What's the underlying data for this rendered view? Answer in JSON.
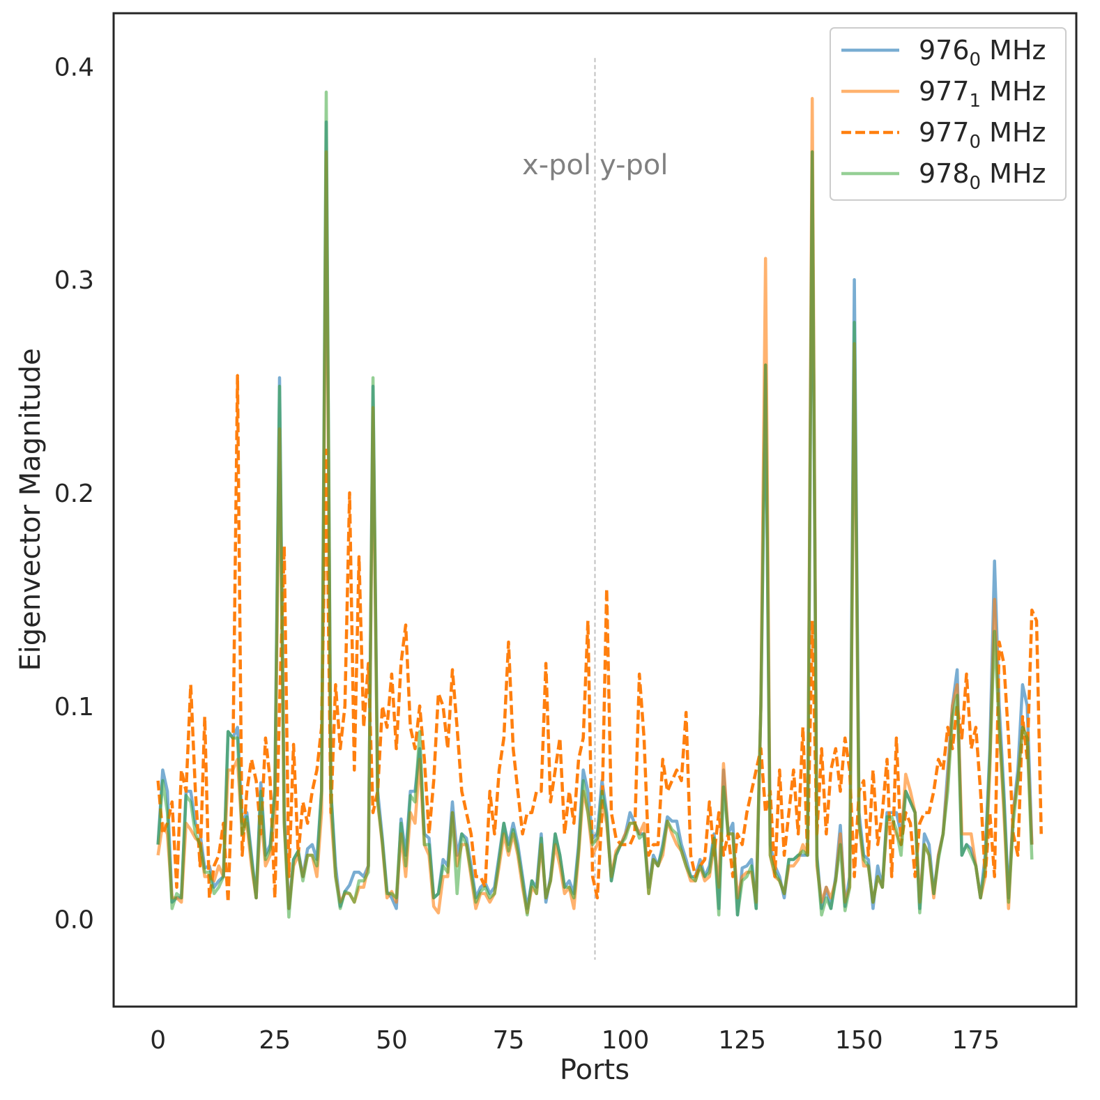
{
  "chart_data": {
    "type": "line",
    "xlabel": "Ports",
    "ylabel": "Eigenvector Magnitude",
    "xlim": [
      -9.5,
      196.5
    ],
    "ylim": [
      -0.041,
      0.425
    ],
    "xticks": [
      0,
      25,
      50,
      75,
      100,
      125,
      150,
      175
    ],
    "yticks": [
      0.0,
      0.1,
      0.2,
      0.3,
      0.4
    ],
    "grid": false,
    "legend_position": "top-right",
    "annotations": [
      {
        "text": "x-pol",
        "x": 93,
        "y": 0.354,
        "align": "right"
      },
      {
        "text": "y-pol",
        "x": 93,
        "y": 0.354,
        "align": "left"
      }
    ],
    "vline": {
      "x": 93.5,
      "y_range": [
        -0.019,
        0.404
      ],
      "style": "dashed",
      "color": "#c0c0c0"
    },
    "series": [
      {
        "name_main": "976",
        "name_sub": "0",
        "name_unit": " MHz",
        "color": "#1f77b4",
        "opacity": 0.6,
        "dash": "solid",
        "values": [
          0.035,
          0.07,
          0.06,
          0.008,
          0.01,
          0.01,
          0.06,
          0.06,
          0.045,
          0.04,
          0.024,
          0.025,
          0.015,
          0.018,
          0.02,
          0.088,
          0.085,
          0.09,
          0.045,
          0.05,
          0.03,
          0.01,
          0.064,
          0.03,
          0.035,
          0.06,
          0.254,
          0.05,
          0.005,
          0.028,
          0.032,
          0.02,
          0.033,
          0.035,
          0.028,
          0.06,
          0.374,
          0.06,
          0.025,
          0.006,
          0.013,
          0.016,
          0.022,
          0.022,
          0.02,
          0.025,
          0.25,
          0.06,
          0.038,
          0.013,
          0.01,
          0.005,
          0.047,
          0.03,
          0.06,
          0.06,
          0.08,
          0.04,
          0.038,
          0.01,
          0.012,
          0.028,
          0.025,
          0.055,
          0.03,
          0.04,
          0.038,
          0.025,
          0.01,
          0.015,
          0.017,
          0.012,
          0.015,
          0.03,
          0.045,
          0.035,
          0.045,
          0.035,
          0.02,
          0.005,
          0.018,
          0.015,
          0.04,
          0.008,
          0.02,
          0.04,
          0.03,
          0.015,
          0.018,
          0.012,
          0.035,
          0.07,
          0.06,
          0.038,
          0.04,
          0.065,
          0.05,
          0.018,
          0.03,
          0.035,
          0.04,
          0.05,
          0.045,
          0.04,
          0.04,
          0.015,
          0.03,
          0.025,
          0.035,
          0.048,
          0.046,
          0.046,
          0.035,
          0.028,
          0.02,
          0.02,
          0.028,
          0.02,
          0.025,
          0.04,
          0.005,
          0.07,
          0.04,
          0.045,
          0.002,
          0.024,
          0.025,
          0.028,
          0.005,
          0.1,
          0.26,
          0.035,
          0.025,
          0.02,
          0.01,
          0.028,
          0.028,
          0.03,
          0.03,
          0.03,
          0.36,
          0.03,
          0.005,
          0.015,
          0.005,
          0.02,
          0.044,
          0.006,
          0.02,
          0.3,
          0.05,
          0.03,
          0.028,
          0.005,
          0.025,
          0.015,
          0.05,
          0.05,
          0.05,
          0.04,
          0.06,
          0.055,
          0.05,
          0.005,
          0.04,
          0.035,
          0.012,
          0.03,
          0.04,
          0.07,
          0.1,
          0.117,
          0.03,
          0.035,
          0.033,
          0.025,
          0.01,
          0.03,
          0.08,
          0.168,
          0.1,
          0.06,
          0.01,
          0.05,
          0.07,
          0.11,
          0.1,
          0.035
        ]
      },
      {
        "name_main": "977",
        "name_sub": "1",
        "name_unit": " MHz",
        "color": "#ff7f0e",
        "opacity": 0.6,
        "dash": "solid",
        "values": [
          0.03,
          0.045,
          0.04,
          0.01,
          0.01,
          0.008,
          0.045,
          0.042,
          0.038,
          0.036,
          0.02,
          0.02,
          0.018,
          0.025,
          0.02,
          0.07,
          0.07,
          0.075,
          0.04,
          0.045,
          0.025,
          0.01,
          0.05,
          0.025,
          0.03,
          0.05,
          0.23,
          0.045,
          0.005,
          0.025,
          0.03,
          0.02,
          0.03,
          0.03,
          0.02,
          0.05,
          0.36,
          0.05,
          0.02,
          0.008,
          0.012,
          0.012,
          0.008,
          0.015,
          0.015,
          0.025,
          0.24,
          0.055,
          0.035,
          0.01,
          0.013,
          0.008,
          0.04,
          0.02,
          0.05,
          0.045,
          0.075,
          0.035,
          0.03,
          0.006,
          0.003,
          0.02,
          0.02,
          0.05,
          0.025,
          0.035,
          0.035,
          0.02,
          0.005,
          0.012,
          0.012,
          0.008,
          0.012,
          0.025,
          0.04,
          0.03,
          0.04,
          0.03,
          0.015,
          0.003,
          0.015,
          0.012,
          0.035,
          0.01,
          0.018,
          0.035,
          0.025,
          0.012,
          0.015,
          0.005,
          0.03,
          0.06,
          0.05,
          0.03,
          0.035,
          0.055,
          0.045,
          0.02,
          0.032,
          0.035,
          0.04,
          0.045,
          0.045,
          0.04,
          0.045,
          0.012,
          0.028,
          0.025,
          0.03,
          0.046,
          0.04,
          0.035,
          0.032,
          0.025,
          0.018,
          0.018,
          0.025,
          0.018,
          0.02,
          0.035,
          0.015,
          0.073,
          0.04,
          0.04,
          0.01,
          0.02,
          0.022,
          0.022,
          0.008,
          0.1,
          0.31,
          0.03,
          0.02,
          0.018,
          0.012,
          0.025,
          0.025,
          0.028,
          0.035,
          0.03,
          0.385,
          0.025,
          0.008,
          0.015,
          0.01,
          0.018,
          0.04,
          0.008,
          0.015,
          0.27,
          0.045,
          0.025,
          0.025,
          0.008,
          0.02,
          0.015,
          0.045,
          0.045,
          0.04,
          0.035,
          0.068,
          0.06,
          0.05,
          0.008,
          0.035,
          0.03,
          0.01,
          0.03,
          0.04,
          0.065,
          0.1,
          0.11,
          0.04,
          0.04,
          0.04,
          0.025,
          0.01,
          0.02,
          0.07,
          0.15,
          0.09,
          0.05,
          0.005,
          0.05,
          0.065,
          0.09,
          0.085,
          0.035
        ]
      },
      {
        "name_main": "977",
        "name_sub": "0",
        "name_unit": " MHz",
        "color": "#ff7f0e",
        "opacity": 1.0,
        "dash": "dashed",
        "values": [
          0.065,
          0.04,
          0.045,
          0.055,
          0.015,
          0.07,
          0.06,
          0.11,
          0.06,
          0.025,
          0.095,
          0.01,
          0.025,
          0.03,
          0.045,
          0.008,
          0.07,
          0.255,
          0.03,
          0.06,
          0.075,
          0.065,
          0.04,
          0.085,
          0.065,
          0.01,
          0.1,
          0.175,
          0.02,
          0.082,
          0.03,
          0.055,
          0.045,
          0.06,
          0.07,
          0.09,
          0.22,
          0.05,
          0.11,
          0.08,
          0.1,
          0.2,
          0.07,
          0.17,
          0.09,
          0.12,
          0.05,
          0.06,
          0.1,
          0.09,
          0.115,
          0.08,
          0.12,
          0.138,
          0.09,
          0.08,
          0.1,
          0.075,
          0.04,
          0.065,
          0.106,
          0.1,
          0.08,
          0.117,
          0.09,
          0.06,
          0.05,
          0.04,
          0.02,
          0.02,
          0.015,
          0.06,
          0.04,
          0.07,
          0.085,
          0.13,
          0.08,
          0.06,
          0.04,
          0.05,
          0.05,
          0.06,
          0.06,
          0.12,
          0.055,
          0.07,
          0.085,
          0.04,
          0.06,
          0.045,
          0.075,
          0.085,
          0.14,
          0.02,
          0.01,
          0.05,
          0.155,
          0.05,
          0.038,
          0.035,
          0.035,
          0.035,
          0.04,
          0.115,
          0.085,
          0.03,
          0.035,
          0.035,
          0.075,
          0.06,
          0.065,
          0.07,
          0.065,
          0.097,
          0.03,
          0.02,
          0.025,
          0.028,
          0.055,
          0.03,
          0.05,
          0.03,
          0.04,
          0.02,
          0.04,
          0.035,
          0.05,
          0.06,
          0.07,
          0.08,
          0.05,
          0.06,
          0.02,
          0.07,
          0.03,
          0.05,
          0.07,
          0.04,
          0.09,
          0.03,
          0.14,
          0.04,
          0.08,
          0.04,
          0.07,
          0.08,
          0.06,
          0.085,
          0.07,
          0.02,
          0.06,
          0.065,
          0.03,
          0.07,
          0.035,
          0.05,
          0.075,
          0.02,
          0.085,
          0.035,
          0.05,
          0.045,
          0.02,
          0.045,
          0.05,
          0.05,
          0.06,
          0.075,
          0.07,
          0.09,
          0.08,
          0.1,
          0.085,
          0.115,
          0.08,
          0.09,
          0.06,
          0.02,
          0.05,
          0.02,
          0.13,
          0.12,
          0.085,
          0.04,
          0.03,
          0.095,
          0.075,
          0.145,
          0.14,
          0.04
        ]
      },
      {
        "name_main": "978",
        "name_sub": "0",
        "name_unit": " MHz",
        "color": "#2ca02c",
        "opacity": 0.5,
        "dash": "solid",
        "values": [
          0.035,
          0.065,
          0.05,
          0.005,
          0.012,
          0.01,
          0.058,
          0.055,
          0.04,
          0.035,
          0.022,
          0.022,
          0.012,
          0.015,
          0.02,
          0.088,
          0.085,
          0.085,
          0.04,
          0.048,
          0.028,
          0.01,
          0.06,
          0.028,
          0.033,
          0.06,
          0.25,
          0.045,
          0.001,
          0.028,
          0.032,
          0.018,
          0.03,
          0.03,
          0.025,
          0.06,
          0.388,
          0.06,
          0.02,
          0.005,
          0.013,
          0.012,
          0.008,
          0.018,
          0.018,
          0.022,
          0.254,
          0.055,
          0.036,
          0.012,
          0.012,
          0.01,
          0.045,
          0.025,
          0.058,
          0.055,
          0.088,
          0.035,
          0.035,
          0.01,
          0.012,
          0.025,
          0.022,
          0.05,
          0.012,
          0.04,
          0.035,
          0.022,
          0.008,
          0.013,
          0.015,
          0.01,
          0.012,
          0.028,
          0.045,
          0.032,
          0.042,
          0.032,
          0.018,
          0.002,
          0.018,
          0.012,
          0.038,
          0.01,
          0.018,
          0.04,
          0.03,
          0.015,
          0.015,
          0.01,
          0.032,
          0.065,
          0.05,
          0.035,
          0.038,
          0.06,
          0.048,
          0.018,
          0.03,
          0.035,
          0.038,
          0.045,
          0.045,
          0.038,
          0.04,
          0.012,
          0.028,
          0.025,
          0.033,
          0.046,
          0.042,
          0.04,
          0.032,
          0.025,
          0.02,
          0.018,
          0.025,
          0.02,
          0.022,
          0.038,
          0.002,
          0.062,
          0.04,
          0.04,
          0.002,
          0.018,
          0.02,
          0.025,
          0.005,
          0.1,
          0.26,
          0.03,
          0.022,
          0.018,
          0.012,
          0.028,
          0.028,
          0.03,
          0.032,
          0.03,
          0.36,
          0.028,
          0.002,
          0.01,
          0.005,
          0.018,
          0.035,
          0.004,
          0.015,
          0.28,
          0.045,
          0.028,
          0.025,
          0.008,
          0.02,
          0.015,
          0.048,
          0.048,
          0.042,
          0.03,
          0.06,
          0.055,
          0.05,
          0.003,
          0.035,
          0.03,
          0.012,
          0.028,
          0.04,
          0.06,
          0.095,
          0.105,
          0.03,
          0.035,
          0.03,
          0.025,
          0.01,
          0.025,
          0.075,
          0.135,
          0.09,
          0.055,
          0.008,
          0.045,
          0.065,
          0.09,
          0.085,
          0.028
        ]
      }
    ]
  }
}
